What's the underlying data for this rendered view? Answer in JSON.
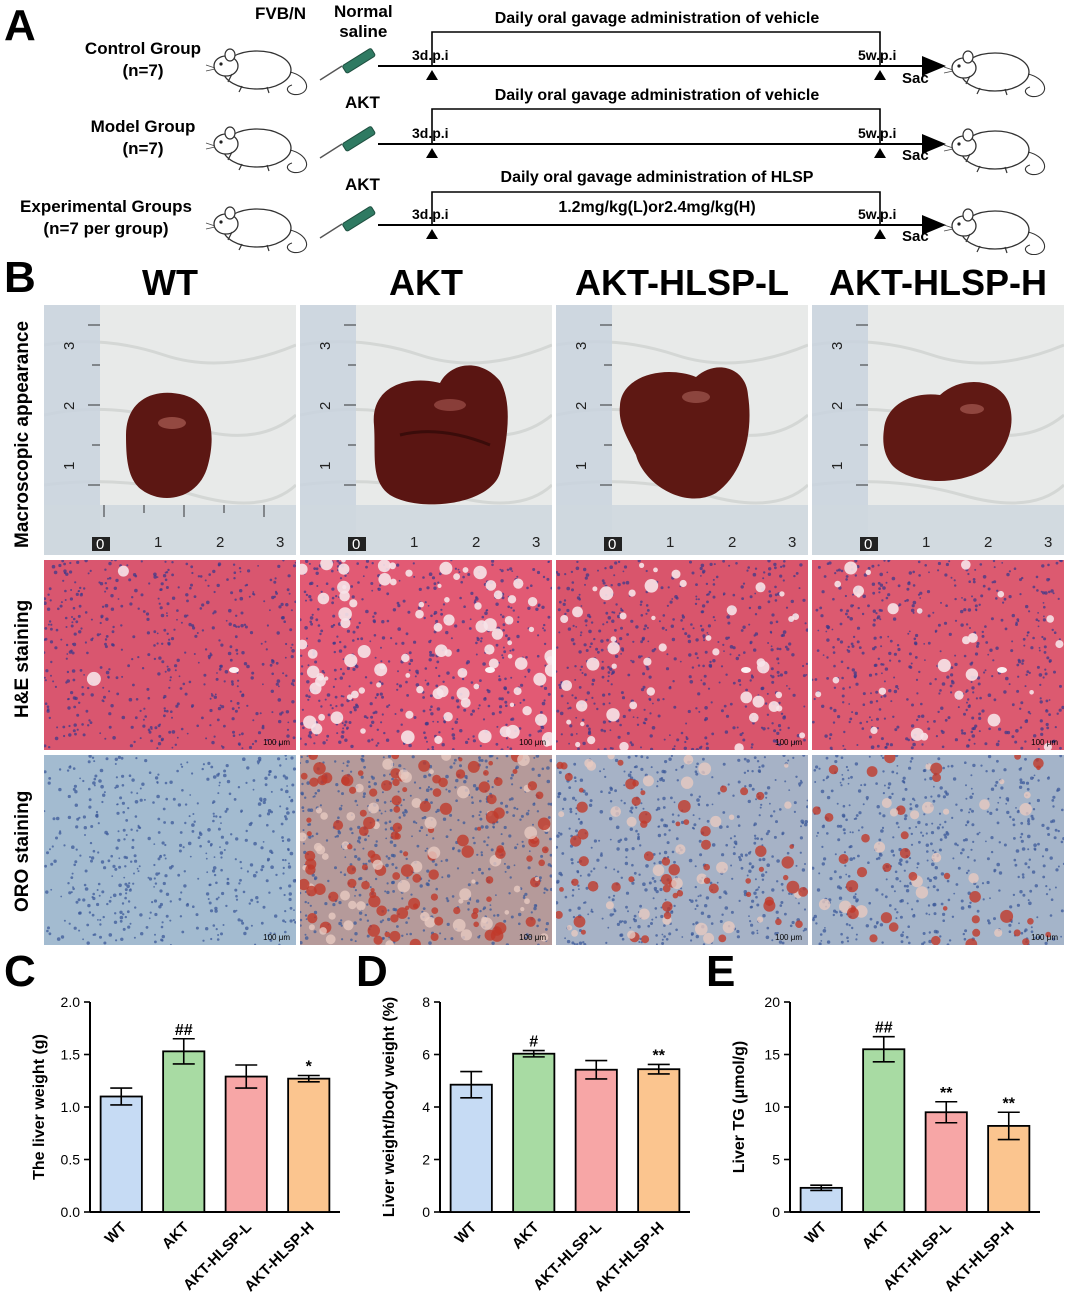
{
  "panel_a": {
    "letter": "A",
    "strain": "FVB/N",
    "saline": "Normal\nsaline",
    "akt": "AKT",
    "start_mark": "3d.p.i",
    "end_mark": "5w.p.i",
    "sac": "Sac",
    "groups": [
      {
        "name": "Control Group",
        "n": "(n=7)",
        "treatment": "Daily oral gavage administration of vehicle",
        "dose": ""
      },
      {
        "name": "Model Group",
        "n": "(n=7)",
        "treatment": "Daily oral gavage administration of vehicle",
        "dose": ""
      },
      {
        "name": "Experimental Groups",
        "n": "(n=7 per group)",
        "treatment": "Daily oral gavage administration of HLSP",
        "dose": "1.2mg/kg(L)or2.4mg/kg(H)"
      }
    ]
  },
  "panel_b": {
    "letter": "B",
    "columns": [
      "WT",
      "AKT",
      "AKT-HLSP-L",
      "AKT-HLSP-H"
    ],
    "rows": [
      "Macroscopic appearance",
      "H&E staining",
      "ORO staining"
    ],
    "scale_bar": "100 μm",
    "ruler_numbers": [
      "0",
      "1",
      "2",
      "3"
    ],
    "colors": {
      "paper": "#e9ebea",
      "liver": "#5a1512",
      "he_background": "#d9566f",
      "oro_background": "#9fb7cc",
      "oro_lipid": "#c0392b"
    }
  },
  "charts": {
    "colors": [
      "#c6dbf4",
      "#a8dba3",
      "#f7a6a6",
      "#fbc58f"
    ],
    "c": {
      "letter": "C"
    },
    "d": {
      "letter": "D"
    },
    "e": {
      "letter": "E"
    }
  },
  "chart_data": [
    {
      "type": "bar",
      "categories": [
        "WT",
        "AKT",
        "AKT-HLSP-L",
        "AKT-HLSP-H"
      ],
      "values": [
        1.1,
        1.53,
        1.29,
        1.27
      ],
      "errors": [
        0.08,
        0.12,
        0.11,
        0.03
      ],
      "annotations": [
        "",
        "##",
        "",
        "*"
      ],
      "ylabel": "The liver weight (g)",
      "ylim": [
        0,
        2.0
      ],
      "yticks": [
        "0.0",
        "0.5",
        "1.0",
        "1.5",
        "2.0"
      ]
    },
    {
      "type": "bar",
      "categories": [
        "WT",
        "AKT",
        "AKT-HLSP-L",
        "AKT-HLSP-H"
      ],
      "values": [
        4.85,
        6.03,
        5.42,
        5.44
      ],
      "errors": [
        0.5,
        0.12,
        0.35,
        0.18
      ],
      "annotations": [
        "",
        "#",
        "",
        "**"
      ],
      "ylabel": "Liver weight/body weight (%)",
      "ylim": [
        0,
        8
      ],
      "yticks": [
        "0",
        "2",
        "4",
        "6",
        "8"
      ]
    },
    {
      "type": "bar",
      "categories": [
        "WT",
        "AKT",
        "AKT-HLSP-L",
        "AKT-HLSP-H"
      ],
      "values": [
        2.3,
        15.5,
        9.5,
        8.2
      ],
      "errors": [
        0.25,
        1.2,
        1.0,
        1.3
      ],
      "annotations": [
        "",
        "##",
        "**",
        "**"
      ],
      "ylabel": "Liver TG (μmol/g)",
      "ylim": [
        0,
        20
      ],
      "yticks": [
        "0",
        "5",
        "10",
        "15",
        "20"
      ]
    }
  ]
}
